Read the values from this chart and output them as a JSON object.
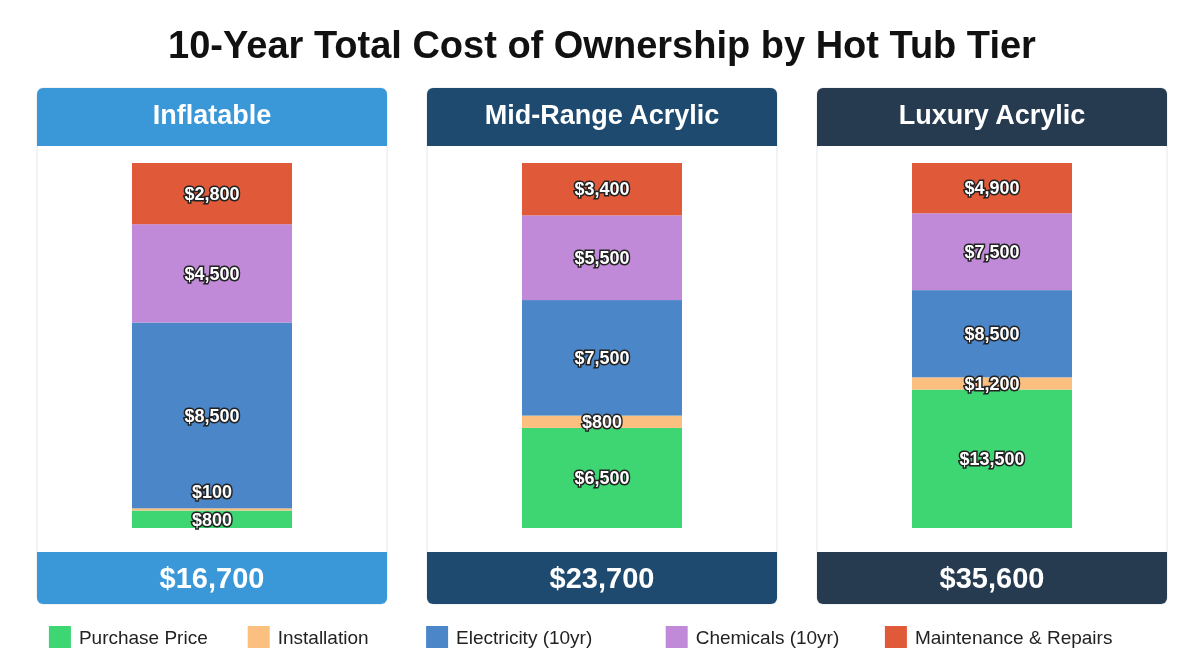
{
  "chart_data": [
    {
      "type": "bar",
      "stacked": true,
      "title": "10-Year Total Cost of Ownership by Hot Tub Tier",
      "categories": [
        "Inflatable"
      ],
      "legend": "bottom",
      "series": [
        {
          "name": "Purchase Price",
          "color": "#3dd672",
          "values": [
            800
          ],
          "value_labels": [
            "$800"
          ]
        },
        {
          "name": "Installation",
          "color": "#fbbf80",
          "values": [
            100
          ],
          "value_labels": [
            "$100"
          ]
        },
        {
          "name": "Electricity (10yr)",
          "color": "#4a86c8",
          "values": [
            8500
          ],
          "value_labels": [
            "$8,500"
          ]
        },
        {
          "name": "Chemicals (10yr)",
          "color": "#c08ad8",
          "values": [
            4500
          ],
          "value_labels": [
            "$4,500"
          ]
        },
        {
          "name": "Maintenance & Repairs",
          "color": "#e05a3a",
          "values": [
            2800
          ],
          "value_labels": [
            "$2,800"
          ]
        }
      ],
      "totals": [
        "$16,700"
      ]
    },
    {
      "type": "bar",
      "stacked": true,
      "categories": [
        "Mid-Range Acrylic"
      ],
      "series": [
        {
          "color": "#3dd672",
          "values": [
            6500
          ],
          "value_labels": [
            "$6,500"
          ]
        },
        {
          "color": "#fbbf80",
          "values": [
            800
          ],
          "value_labels": [
            "$800"
          ]
        },
        {
          "color": "#4a86c8",
          "values": [
            7500
          ],
          "value_labels": [
            "$7,500"
          ]
        },
        {
          "color": "#c08ad8",
          "values": [
            5500
          ],
          "value_labels": [
            "$5,500"
          ]
        },
        {
          "color": "#e05a3a",
          "values": [
            3400
          ],
          "value_labels": [
            "$3,400"
          ]
        }
      ],
      "totals": [
        "$23,700"
      ]
    },
    {
      "type": "bar",
      "stacked": true,
      "categories": [
        "Luxury Acrylic"
      ],
      "series": [
        {
          "color": "#3dd672",
          "values": [
            13500
          ],
          "value_labels": [
            "$13,500"
          ]
        },
        {
          "color": "#fbbf80",
          "values": [
            1200
          ],
          "value_labels": [
            "$1,200"
          ]
        },
        {
          "color": "#4a86c8",
          "values": [
            8500
          ],
          "value_labels": [
            "$8,500"
          ]
        },
        {
          "color": "#c08ad8",
          "values": [
            7500
          ],
          "value_labels": [
            "$7,500"
          ]
        },
        {
          "color": "#e05a3a",
          "values": [
            4900
          ],
          "value_labels": [
            "$4,900"
          ]
        }
      ],
      "totals": [
        "$35,600"
      ]
    }
  ]
}
